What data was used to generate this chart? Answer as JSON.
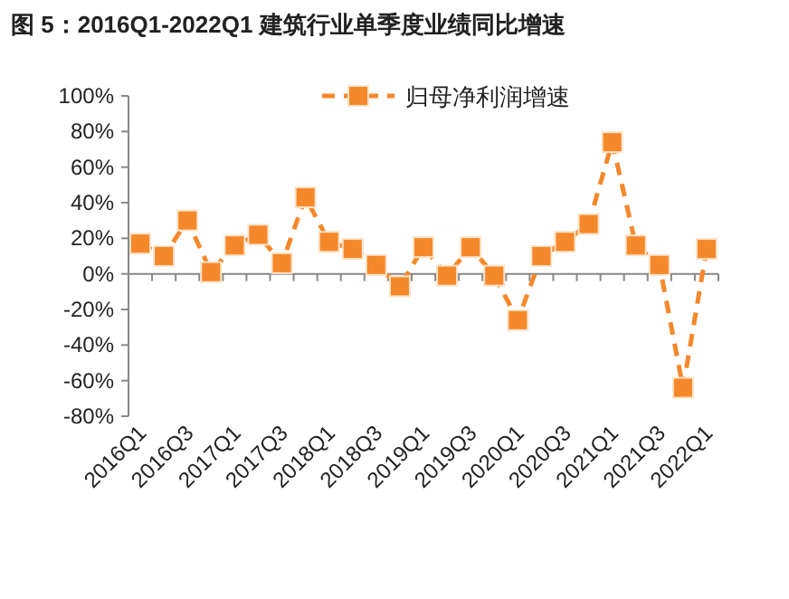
{
  "chart_data": {
    "type": "line",
    "title": "图 5：2016Q1-2022Q1 建筑行业单季度业绩同比增速",
    "categories": [
      "2016Q1",
      null,
      "2016Q3",
      null,
      "2017Q1",
      null,
      "2017Q3",
      null,
      "2018Q1",
      null,
      "2018Q3",
      null,
      "2019Q1",
      null,
      "2019Q3",
      null,
      "2020Q1",
      null,
      "2020Q3",
      null,
      "2021Q1",
      null,
      "2021Q3",
      null,
      "2022Q1"
    ],
    "series": [
      {
        "name": "归母净利润增速",
        "color": "#f5882a",
        "values": [
          17,
          10,
          30,
          1,
          16,
          22,
          6,
          43,
          18,
          14,
          5,
          -7,
          15,
          -1,
          15,
          -1,
          -26,
          10,
          18,
          28,
          74,
          16,
          5,
          -64,
          14
        ]
      }
    ],
    "ylim": [
      -80,
      100
    ],
    "yticks": [
      {
        "value": -80,
        "label": "-80%"
      },
      {
        "value": -60,
        "label": "-60%"
      },
      {
        "value": -40,
        "label": "-40%"
      },
      {
        "value": -20,
        "label": "-20%"
      },
      {
        "value": 0,
        "label": "0%"
      },
      {
        "value": 20,
        "label": "20%"
      },
      {
        "value": 40,
        "label": "40%"
      },
      {
        "value": 60,
        "label": "60%"
      },
      {
        "value": 80,
        "label": "80%"
      },
      {
        "value": 100,
        "label": "100%"
      }
    ],
    "marker": "square",
    "line_style": "dashed",
    "legend": "top right"
  }
}
